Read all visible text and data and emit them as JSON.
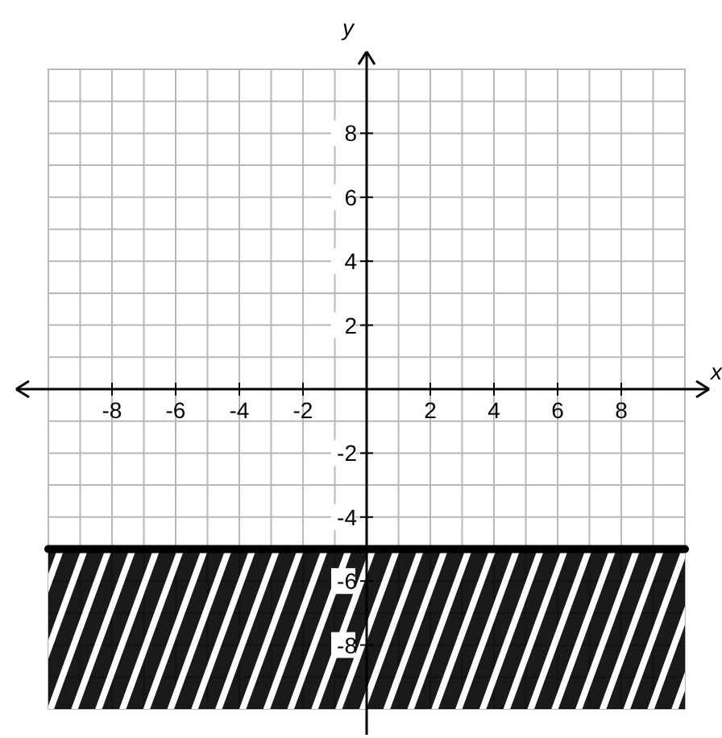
{
  "chart_data": {
    "type": "line",
    "xlabel": "x",
    "ylabel": "y",
    "xlim": [
      -10,
      10
    ],
    "ylim": [
      -10,
      10
    ],
    "xticks": [
      {
        "value": -9,
        "label": null
      },
      -8,
      {
        "value": -7,
        "label": null
      },
      -6,
      {
        "value": -5,
        "label": null
      },
      -4,
      {
        "value": -3,
        "label": null
      },
      -2,
      {
        "value": -1,
        "label": null
      },
      {
        "value": 0,
        "label": null
      },
      {
        "value": 1,
        "label": null
      },
      2,
      {
        "value": 3,
        "label": null
      },
      4,
      {
        "value": 5,
        "label": null
      },
      6,
      {
        "value": 7,
        "label": null
      },
      8,
      {
        "value": 9,
        "label": null
      }
    ],
    "yticks": [
      {
        "value": -9,
        "label": null
      },
      -8,
      {
        "value": -7,
        "label": null
      },
      -6,
      {
        "value": -5,
        "label": null
      },
      -4,
      {
        "value": -3,
        "label": null
      },
      -2,
      {
        "value": -1,
        "label": null
      },
      {
        "value": 0,
        "label": null
      },
      {
        "value": 1,
        "label": null
      },
      2,
      {
        "value": 3,
        "label": null
      },
      4,
      {
        "value": 5,
        "label": null
      },
      6,
      {
        "value": 7,
        "label": null
      },
      8,
      {
        "value": 9,
        "label": null
      }
    ],
    "grid": true,
    "series": [
      {
        "color": "#000000",
        "x": [
          -10,
          10
        ],
        "values": [
          -5,
          -5
        ]
      }
    ],
    "bands": [
      {
        "axis": "y",
        "from": -10,
        "to": -5,
        "color": "#000000"
      }
    ]
  }
}
